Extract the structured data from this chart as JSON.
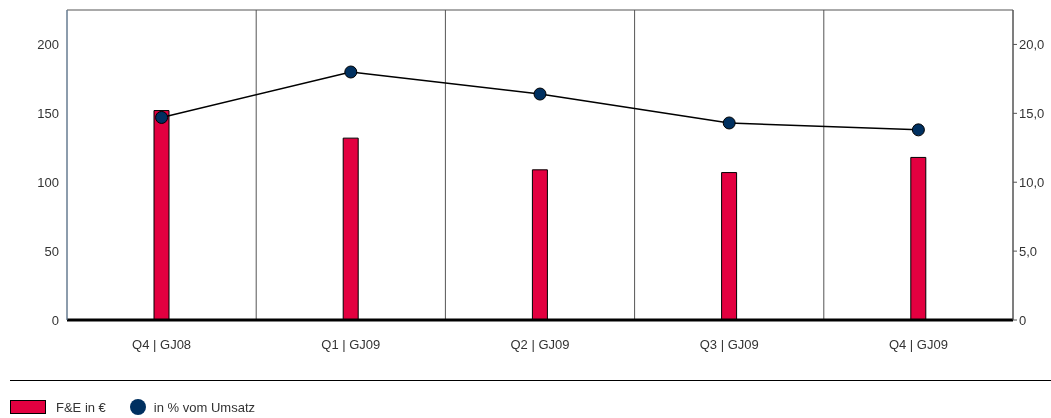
{
  "chart_data": {
    "type": "bar",
    "categories": [
      "Q4 | GJ08",
      "Q1 | GJ09",
      "Q2 | GJ09",
      "Q3 | GJ09",
      "Q4 | GJ09"
    ],
    "series": [
      {
        "name": "F&E in €",
        "color": "#e30040",
        "values": [
          152,
          132,
          109,
          107,
          118
        ]
      },
      {
        "name": "in % vom Umsatz",
        "type": "line",
        "axis": "y2",
        "color": "#003060",
        "values": [
          14.7,
          18.0,
          16.4,
          14.3,
          13.8
        ]
      }
    ],
    "ylim": [
      0,
      225
    ],
    "yticks": [
      0,
      50,
      100,
      150,
      200
    ],
    "y2lim": [
      0,
      22.5
    ],
    "y2ticks": [
      0,
      {
        "value": 5,
        "label": "5,0"
      },
      {
        "value": 10,
        "label": "10,0"
      },
      {
        "value": 15,
        "label": "15,0"
      },
      {
        "value": 20,
        "label": "20,0"
      }
    ],
    "grid": true,
    "legend": "bottom",
    "marker": "circle",
    "line_style": "solid"
  }
}
